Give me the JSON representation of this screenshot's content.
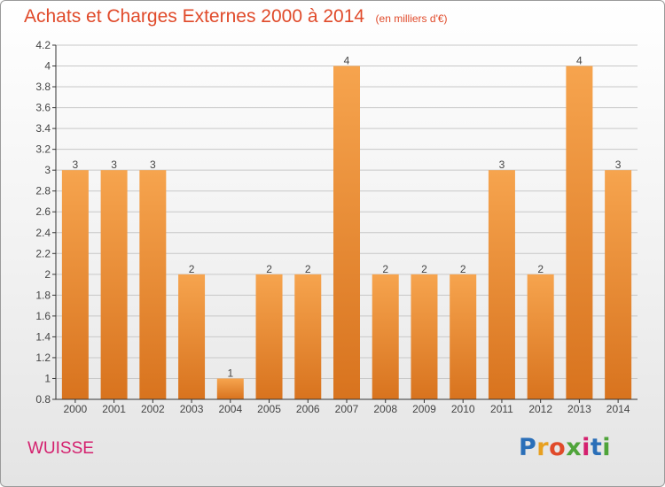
{
  "header": {
    "title": "Achats et Charges Externes 2000 à 2014",
    "unit": "(en milliers d'€)"
  },
  "footer": {
    "place": "WUISSE",
    "logo": "Proxiti",
    "logo_colors": [
      "#2b6fb8",
      "#e8a020",
      "#e04a2a",
      "#4fa43a",
      "#d4206e",
      "#2b6fb8",
      "#4fa43a"
    ]
  },
  "colors": {
    "bar_top": "#f6a44e",
    "bar_bottom": "#d8731e",
    "grid": "#c8c8c8",
    "axis": "#333333",
    "label": "#444444"
  },
  "chart_data": {
    "type": "bar",
    "title": "Achats et Charges Externes 2000 à 2014",
    "subtitle": "(en milliers d'€)",
    "categories": [
      "2000",
      "2001",
      "2002",
      "2003",
      "2004",
      "2005",
      "2006",
      "2007",
      "2008",
      "2009",
      "2010",
      "2011",
      "2012",
      "2013",
      "2014"
    ],
    "values": [
      3,
      3,
      3,
      2,
      1,
      2,
      2,
      4,
      2,
      2,
      2,
      3,
      2,
      4,
      3
    ],
    "data_labels": [
      "3",
      "3",
      "3",
      "2",
      "1",
      "2",
      "2",
      "4",
      "2",
      "2",
      "2",
      "3",
      "2",
      "4",
      "3"
    ],
    "ylim": [
      0.8,
      4.2
    ],
    "yticks": [
      0.8,
      1,
      1.2,
      1.4,
      1.6,
      1.8,
      2,
      2.2,
      2.4,
      2.6,
      2.8,
      3,
      3.2,
      3.4,
      3.6,
      3.8,
      4,
      4.2
    ],
    "ytick_labels": [
      "0.8",
      "1",
      "1.2",
      "1.4",
      "1.6",
      "1.8",
      "2",
      "2.2",
      "2.4",
      "2.6",
      "2.8",
      "3",
      "3.2",
      "3.4",
      "3.6",
      "3.8",
      "4",
      "4.2"
    ],
    "grid": true,
    "xlabel": "",
    "ylabel": ""
  }
}
